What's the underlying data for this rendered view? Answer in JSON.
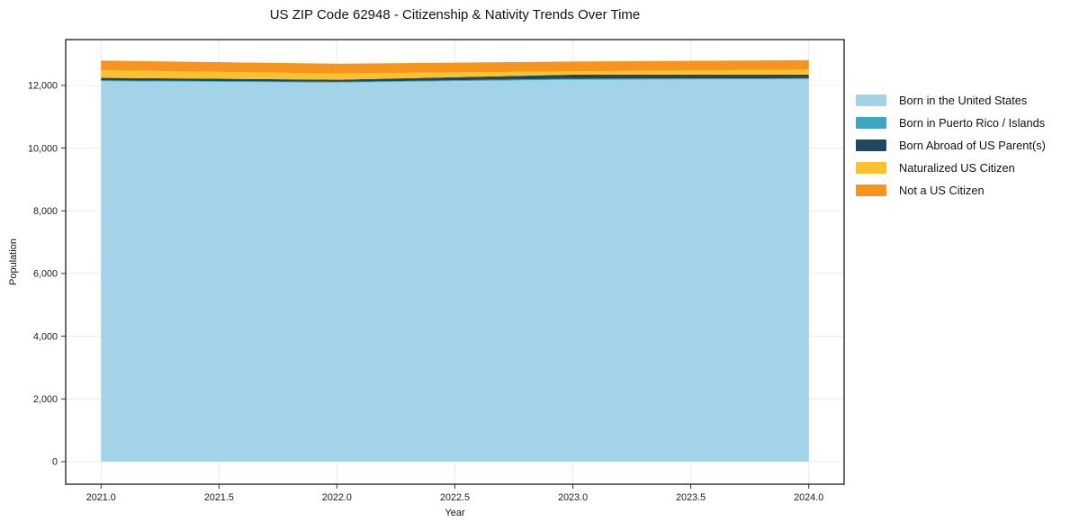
{
  "chart_data": {
    "type": "area",
    "stacked": true,
    "title": "US ZIP Code 62948 - Citizenship & Nativity Trends Over Time",
    "xlabel": "Year",
    "ylabel": "Population",
    "x": [
      2021,
      2022,
      2023,
      2024
    ],
    "series": [
      {
        "name": "Born in the United States",
        "color": "#A3D3E8",
        "values": [
          12130,
          12090,
          12180,
          12200
        ]
      },
      {
        "name": "Born in Puerto Rico / Islands",
        "color": "#3BA7C1",
        "values": [
          30,
          25,
          30,
          30
        ]
      },
      {
        "name": "Born Abroad of US Parent(s)",
        "color": "#20485C",
        "values": [
          80,
          65,
          130,
          110
        ]
      },
      {
        "name": "Naturalized US Citizen",
        "color": "#FCC22D",
        "values": [
          240,
          200,
          110,
          165
        ]
      },
      {
        "name": "Not a US Citizen",
        "color": "#F6941E",
        "values": [
          310,
          310,
          310,
          300
        ]
      }
    ],
    "totals": [
      12790,
      12690,
      12760,
      12805
    ],
    "xlim": [
      2020.85,
      2024.15
    ],
    "ylim": [
      -720,
      13460
    ],
    "xticks": {
      "values": [
        2021.0,
        2021.5,
        2022.0,
        2022.5,
        2023.0,
        2023.5,
        2024.0
      ],
      "labels": [
        "2021.0",
        "2021.5",
        "2022.0",
        "2022.5",
        "2023.0",
        "2023.5",
        "2024.0"
      ]
    },
    "yticks": {
      "values": [
        0,
        2000,
        4000,
        6000,
        8000,
        10000,
        12000
      ],
      "labels": [
        "0",
        "2,000",
        "4,000",
        "6,000",
        "8,000",
        "10,000",
        "12,000"
      ]
    },
    "grid": true,
    "legend_position": "right-outside",
    "axes": {
      "spine_color": "#1a1a1a",
      "grid_color": "#ebebeb",
      "background": "#ffffff"
    }
  }
}
